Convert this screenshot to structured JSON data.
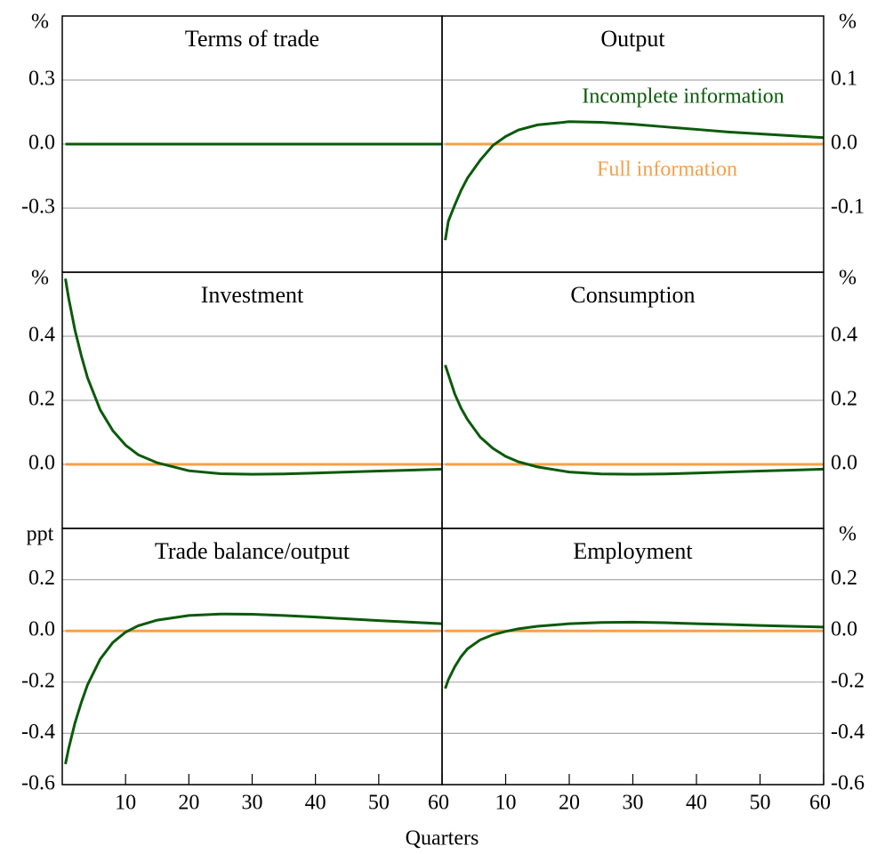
{
  "xlabel": "Quarters",
  "chart_data": [
    {
      "type": "line",
      "title": "Terms of trade",
      "unit": "%",
      "yaxis": "left",
      "grid": true,
      "xlim": [
        0,
        60
      ],
      "ylim": [
        -0.6,
        0.6
      ],
      "yticks": [
        0.3,
        {
          "value": 0,
          "label": "0.0"
        },
        -0.3
      ],
      "x": [
        0.5,
        1,
        2,
        3,
        4,
        6,
        8,
        10,
        12,
        15,
        20,
        25,
        30,
        35,
        40,
        45,
        50,
        55,
        60
      ],
      "series": [
        {
          "color": "#f5a04a",
          "values": [
            0,
            0,
            0,
            0,
            0,
            0,
            0,
            0,
            0,
            0,
            0,
            0,
            0,
            0,
            0,
            0,
            0,
            0,
            0
          ]
        },
        {
          "color": "#0b5a0b",
          "values": [
            0,
            0,
            0,
            0,
            0,
            0,
            0,
            0,
            0,
            0,
            0,
            0,
            0,
            0,
            0,
            0,
            0,
            0,
            0
          ]
        }
      ]
    },
    {
      "type": "line",
      "title": "Output",
      "unit": "%",
      "yaxis": "right",
      "grid": true,
      "xlim": [
        0,
        60
      ],
      "ylim": [
        -0.2,
        0.2
      ],
      "yticks": [
        0.1,
        {
          "value": 0,
          "label": "0.0"
        },
        -0.1
      ],
      "x": [
        0.5,
        1,
        2,
        3,
        4,
        6,
        8,
        10,
        12,
        15,
        20,
        25,
        30,
        35,
        40,
        45,
        50,
        55,
        60
      ],
      "series": [
        {
          "name": "Full information",
          "color": "#f5a04a",
          "values": [
            0,
            0,
            0,
            0,
            0,
            0,
            0,
            0,
            0,
            0,
            0,
            0,
            0,
            0,
            0,
            0,
            0,
            0,
            0
          ]
        },
        {
          "name": "Incomplete information",
          "color": "#0b5a0b",
          "values": [
            -0.15,
            -0.12,
            -0.095,
            -0.072,
            -0.053,
            -0.025,
            -0.002,
            0.012,
            0.022,
            0.03,
            0.035,
            0.034,
            0.031,
            0.027,
            0.023,
            0.019,
            0.016,
            0.013,
            0.01
          ]
        }
      ]
    },
    {
      "type": "line",
      "title": "Investment",
      "unit": "%",
      "yaxis": "left",
      "grid": true,
      "xlim": [
        0,
        60
      ],
      "ylim": [
        -0.2,
        0.6
      ],
      "yticks": [
        0.4,
        0.2,
        {
          "value": 0,
          "label": "0.0"
        }
      ],
      "x": [
        0.5,
        1,
        2,
        3,
        4,
        6,
        8,
        10,
        12,
        15,
        20,
        25,
        30,
        35,
        40,
        45,
        50,
        55,
        60
      ],
      "series": [
        {
          "color": "#f5a04a",
          "values": [
            0,
            0,
            0,
            0,
            0,
            0,
            0,
            0,
            0,
            0,
            0,
            0,
            0,
            0,
            0,
            0,
            0,
            0,
            0
          ]
        },
        {
          "color": "#0b5a0b",
          "values": [
            0.58,
            0.52,
            0.42,
            0.34,
            0.27,
            0.17,
            0.105,
            0.06,
            0.03,
            0.005,
            -0.02,
            -0.029,
            -0.031,
            -0.03,
            -0.027,
            -0.024,
            -0.021,
            -0.018,
            -0.015
          ]
        }
      ]
    },
    {
      "type": "line",
      "title": "Consumption",
      "unit": "%",
      "yaxis": "right",
      "grid": true,
      "xlim": [
        0,
        60
      ],
      "ylim": [
        -0.2,
        0.6
      ],
      "yticks": [
        0.4,
        0.2,
        {
          "value": 0,
          "label": "0.0"
        }
      ],
      "x": [
        0.5,
        1,
        2,
        3,
        4,
        6,
        8,
        10,
        12,
        15,
        20,
        25,
        30,
        35,
        40,
        45,
        50,
        55,
        60
      ],
      "series": [
        {
          "color": "#f5a04a",
          "values": [
            0,
            0,
            0,
            0,
            0,
            0,
            0,
            0,
            0,
            0,
            0,
            0,
            0,
            0,
            0,
            0,
            0,
            0,
            0
          ]
        },
        {
          "color": "#0b5a0b",
          "values": [
            0.31,
            0.28,
            0.22,
            0.175,
            0.14,
            0.085,
            0.05,
            0.025,
            0.008,
            -0.008,
            -0.024,
            -0.03,
            -0.031,
            -0.03,
            -0.027,
            -0.024,
            -0.021,
            -0.018,
            -0.015
          ]
        }
      ]
    },
    {
      "type": "line",
      "title": "Trade balance/output",
      "unit": "ppt",
      "yaxis": "left",
      "grid": true,
      "xlim": [
        0,
        60
      ],
      "ylim": [
        -0.6,
        0.4
      ],
      "yticks": [
        0.2,
        {
          "value": 0,
          "label": "0.0"
        },
        -0.2,
        -0.4,
        -0.6
      ],
      "xticks": [
        10,
        20,
        30,
        40,
        50,
        60
      ],
      "x": [
        0.5,
        1,
        2,
        3,
        4,
        6,
        8,
        10,
        12,
        15,
        20,
        25,
        30,
        35,
        40,
        45,
        50,
        55,
        60
      ],
      "series": [
        {
          "color": "#f5a04a",
          "values": [
            0,
            0,
            0,
            0,
            0,
            0,
            0,
            0,
            0,
            0,
            0,
            0,
            0,
            0,
            0,
            0,
            0,
            0,
            0
          ]
        },
        {
          "color": "#0b5a0b",
          "values": [
            -0.52,
            -0.46,
            -0.36,
            -0.28,
            -0.21,
            -0.11,
            -0.045,
            -0.005,
            0.02,
            0.042,
            0.06,
            0.066,
            0.065,
            0.06,
            0.054,
            0.047,
            0.04,
            0.034,
            0.028
          ]
        }
      ]
    },
    {
      "type": "line",
      "title": "Employment",
      "unit": "%",
      "yaxis": "right",
      "grid": true,
      "xlim": [
        0,
        60
      ],
      "ylim": [
        -0.6,
        0.4
      ],
      "yticks": [
        0.2,
        {
          "value": 0,
          "label": "0.0"
        },
        -0.2,
        -0.4,
        -0.6
      ],
      "xticks": [
        10,
        20,
        30,
        40,
        50,
        60
      ],
      "x": [
        0.5,
        1,
        2,
        3,
        4,
        6,
        8,
        10,
        12,
        15,
        20,
        25,
        30,
        35,
        40,
        45,
        50,
        55,
        60
      ],
      "series": [
        {
          "color": "#f5a04a",
          "values": [
            0,
            0,
            0,
            0,
            0,
            0,
            0,
            0,
            0,
            0,
            0,
            0,
            0,
            0,
            0,
            0,
            0,
            0,
            0
          ]
        },
        {
          "color": "#0b5a0b",
          "values": [
            -0.225,
            -0.19,
            -0.14,
            -0.1,
            -0.07,
            -0.035,
            -0.015,
            -0.002,
            0.008,
            0.018,
            0.028,
            0.033,
            0.034,
            0.032,
            0.028,
            0.025,
            0.021,
            0.018,
            0.015
          ]
        }
      ]
    }
  ]
}
